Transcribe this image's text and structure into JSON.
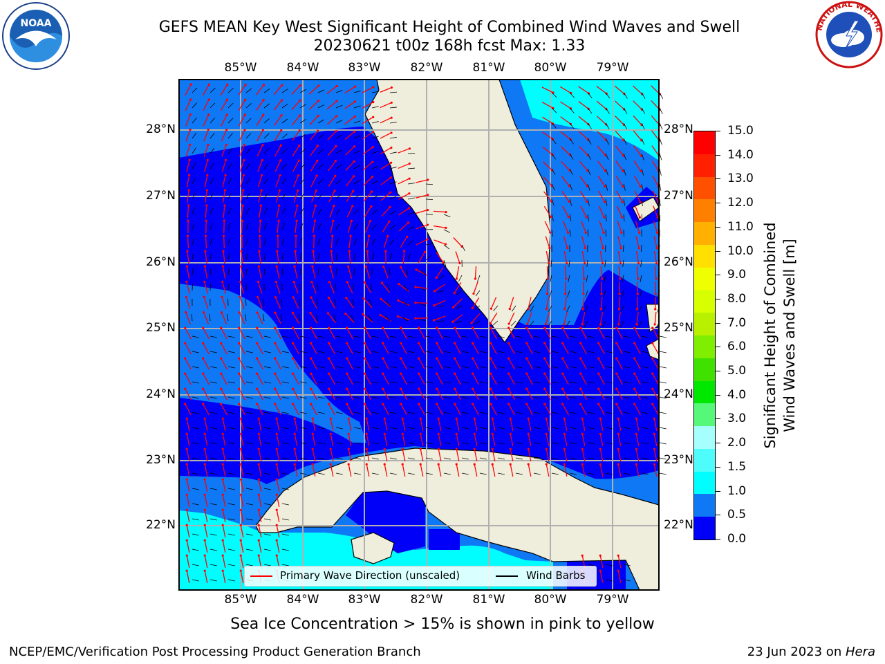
{
  "title_line1": "GEFS MEAN Key West Significant Height of Combined Wind Waves and Swell",
  "title_line2": "20230621 t00z 168h fcst   Max: 1.33",
  "map": {
    "lon_labels": [
      "85°W",
      "84°W",
      "83°W",
      "82°W",
      "81°W",
      "80°W",
      "79°W"
    ],
    "lat_labels": [
      "28°N",
      "27°N",
      "26°N",
      "25°N",
      "24°N",
      "23°N",
      "22°N"
    ],
    "colors": {
      "land": "#efeedc",
      "band_0_0_5": "#0000f8",
      "band_0_5_1_0": "#0f78f5",
      "band_1_0_1_5": "#00fefe",
      "grid": "#b0b0b0",
      "coast": "#000000",
      "wave_arrow": "#ff0000"
    }
  },
  "colorbar": {
    "title_line1": "Significant Height of Combined",
    "title_line2": "Wind Waves and Swell [m]",
    "ticks": [
      "15.0",
      "14.0",
      "13.0",
      "12.0",
      "11.0",
      "10.0",
      "9.0",
      "8.0",
      "7.0",
      "6.0",
      "5.0",
      "4.0",
      "3.0",
      "2.0",
      "1.5",
      "1.0",
      "0.5",
      "0.0"
    ],
    "colors_top_to_bottom": [
      "#ff0000",
      "#ff2000",
      "#ff5000",
      "#ff8000",
      "#ffb000",
      "#ffe000",
      "#f0ff00",
      "#d8ff00",
      "#b8f000",
      "#80ee00",
      "#40e000",
      "#00e800",
      "#55f878",
      "#a6fffc",
      "#4ffcfc",
      "#00fefe",
      "#0f78f5",
      "#0000f8"
    ]
  },
  "legend": {
    "wave_label": "Primary Wave Direction (unscaled)",
    "wind_label": "Wind Barbs",
    "wave_color": "#ff0000",
    "wind_color": "#000000"
  },
  "sea_ice_note": "Sea Ice Concentration > 15% is shown in pink to yellow",
  "footer": {
    "left": "NCEP/EMC/Verification Post Processing Product Generation Branch",
    "right_date": "23 Jun 2023 on ",
    "right_system": "Hera"
  },
  "logos": {
    "noaa_text": "NOAA",
    "nws_text": "NATIONAL WEATHER SERVICE"
  }
}
